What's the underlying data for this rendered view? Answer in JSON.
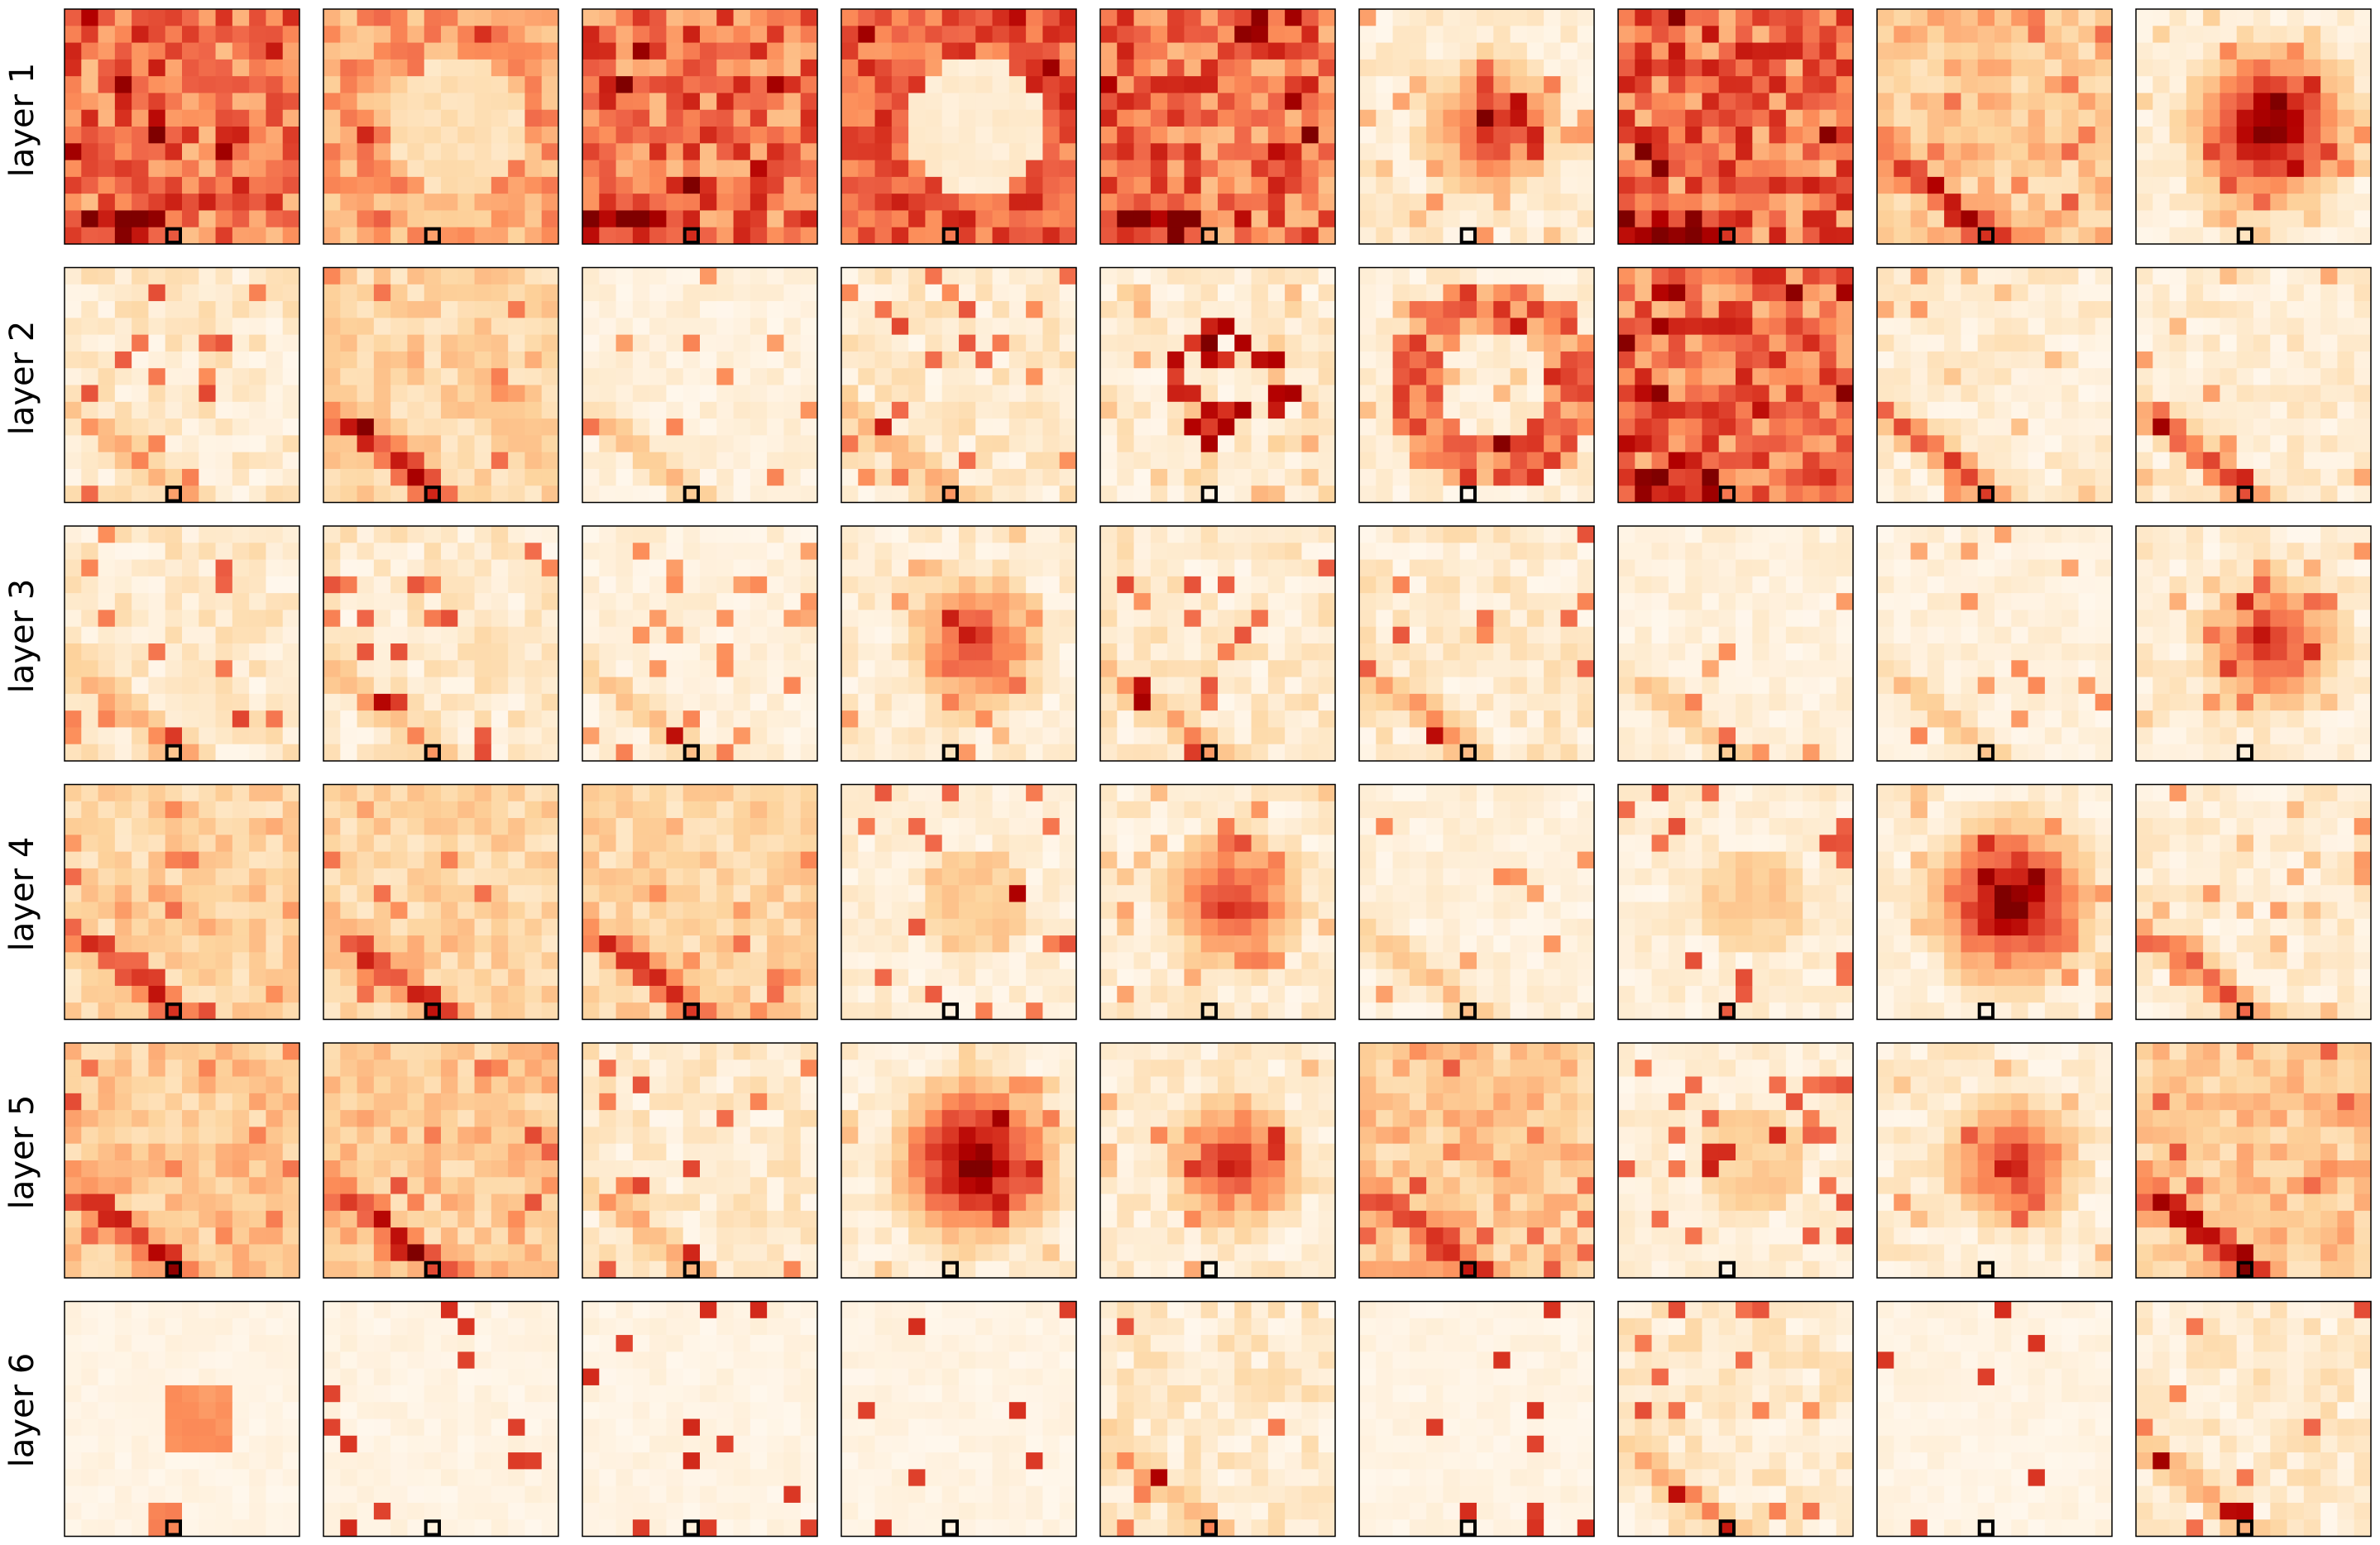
{
  "figure": {
    "row_labels": [
      "layer 1",
      "layer 2",
      "layer 3",
      "layer 4",
      "layer 5",
      "layer 6"
    ],
    "columns": 9
  },
  "chart_data": {
    "type": "heatmap",
    "title": "",
    "layout": "6 rows x 9 columns grid of heatmaps",
    "row_labels": [
      "layer 1",
      "layer 2",
      "layer 3",
      "layer 4",
      "layer 5",
      "layer 6"
    ],
    "grid_cells_per_side": 14,
    "colormap": "OrRd",
    "color_stops": [
      "#fff7ec",
      "#fee8c8",
      "#fdd49e",
      "#fdbb84",
      "#fc8d59",
      "#ef6548",
      "#d7301f",
      "#b30000",
      "#7f0000"
    ],
    "highlighted_cell": {
      "row": 13,
      "col": 6
    },
    "ticks": "none",
    "legend": "none",
    "panels": [
      [
        "dense",
        "ring-light-center",
        "dense",
        "bright-center-disk",
        "dense",
        "center-blob",
        "dense",
        "medium",
        "center-blob-dark"
      ],
      [
        "sparse",
        "diag-medium",
        "very-sparse",
        "sparse",
        "center-spots",
        "ring",
        "dense",
        "diag-sparse",
        "diag-sparse"
      ],
      [
        "sparse",
        "sparse",
        "very-sparse",
        "center-blob",
        "sparse",
        "sparse",
        "very-sparse",
        "very-sparse",
        "center-blob"
      ],
      [
        "diag-medium",
        "diag-medium",
        "diag-medium",
        "spots",
        "center-blob",
        "very-sparse",
        "spots",
        "center-blob-dark",
        "diag-sparse"
      ],
      [
        "medium",
        "medium",
        "sparse",
        "center-blob-dark",
        "center-blob",
        "medium",
        "spots",
        "center-blob",
        "medium"
      ],
      [
        "low-blob",
        "nearly-empty",
        "nearly-empty",
        "nearly-empty",
        "sparse",
        "nearly-empty",
        "sparse",
        "nearly-empty",
        "sparse"
      ]
    ]
  }
}
